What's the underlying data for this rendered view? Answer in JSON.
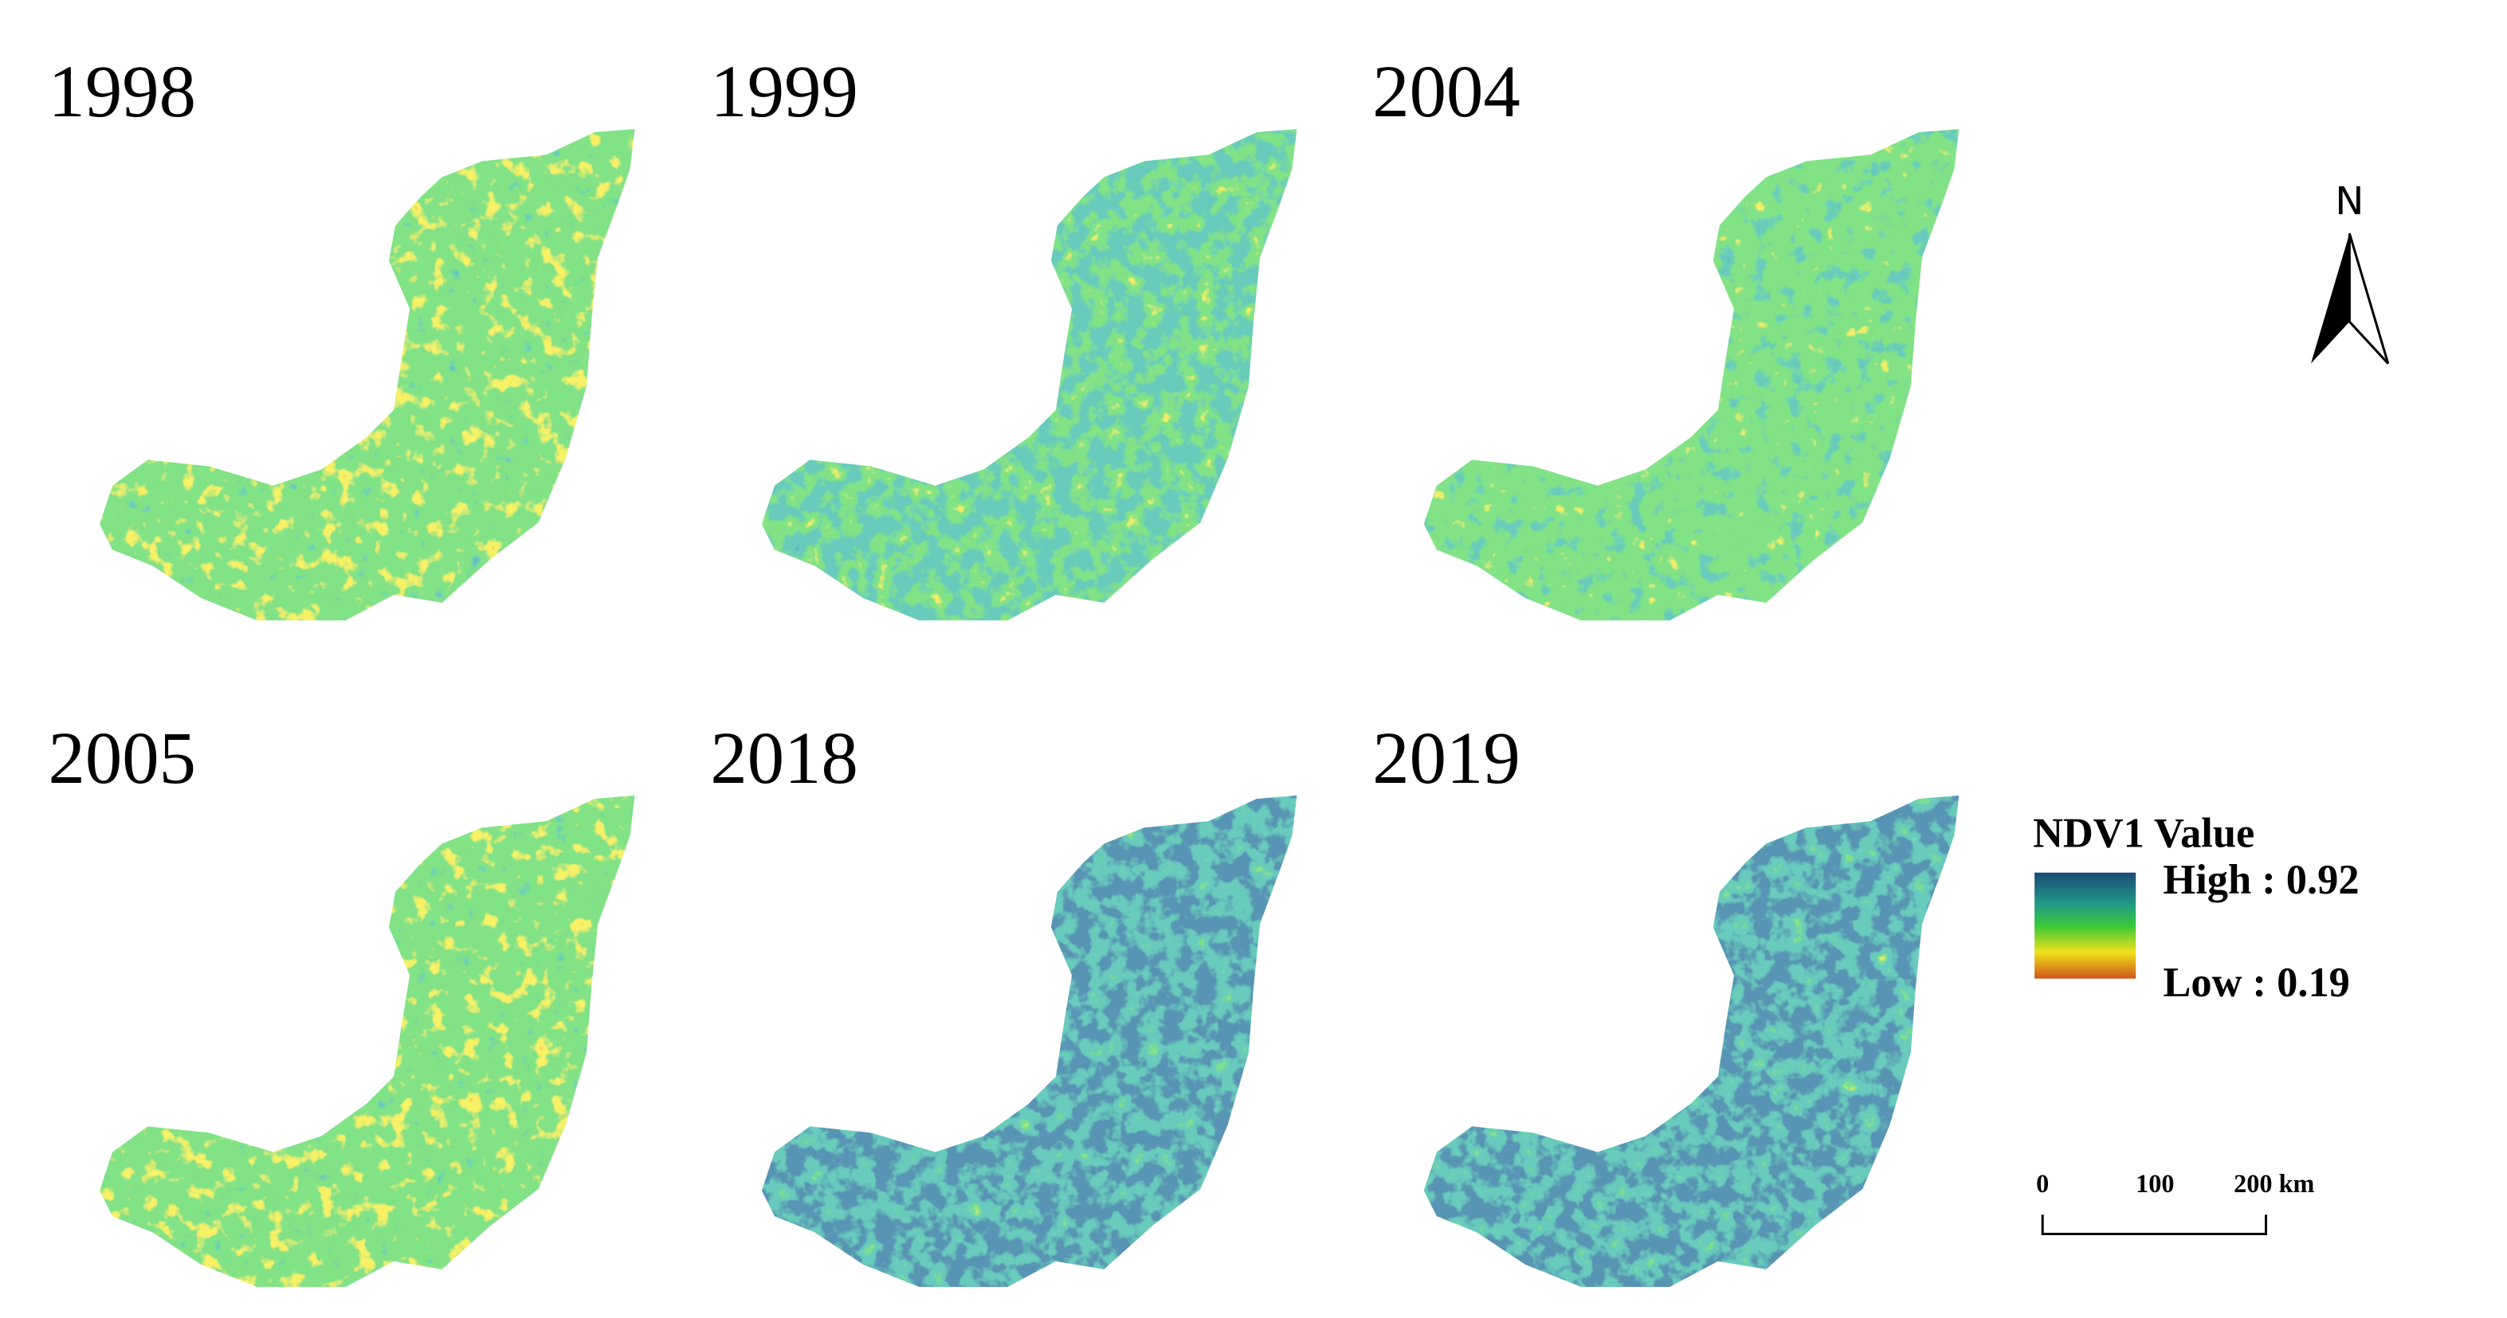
{
  "panels": [
    {
      "year": "1998"
    },
    {
      "year": "1999"
    },
    {
      "year": "2004"
    },
    {
      "year": "2005"
    },
    {
      "year": "2018"
    },
    {
      "year": "2019"
    }
  ],
  "legend": {
    "title": "NDV1 Value",
    "high": "High : 0.92",
    "low": "Low : 0.19"
  },
  "scale_bar": {
    "labels": [
      "0",
      "100",
      "200 km"
    ]
  },
  "north_arrow": {
    "label": "N"
  }
}
